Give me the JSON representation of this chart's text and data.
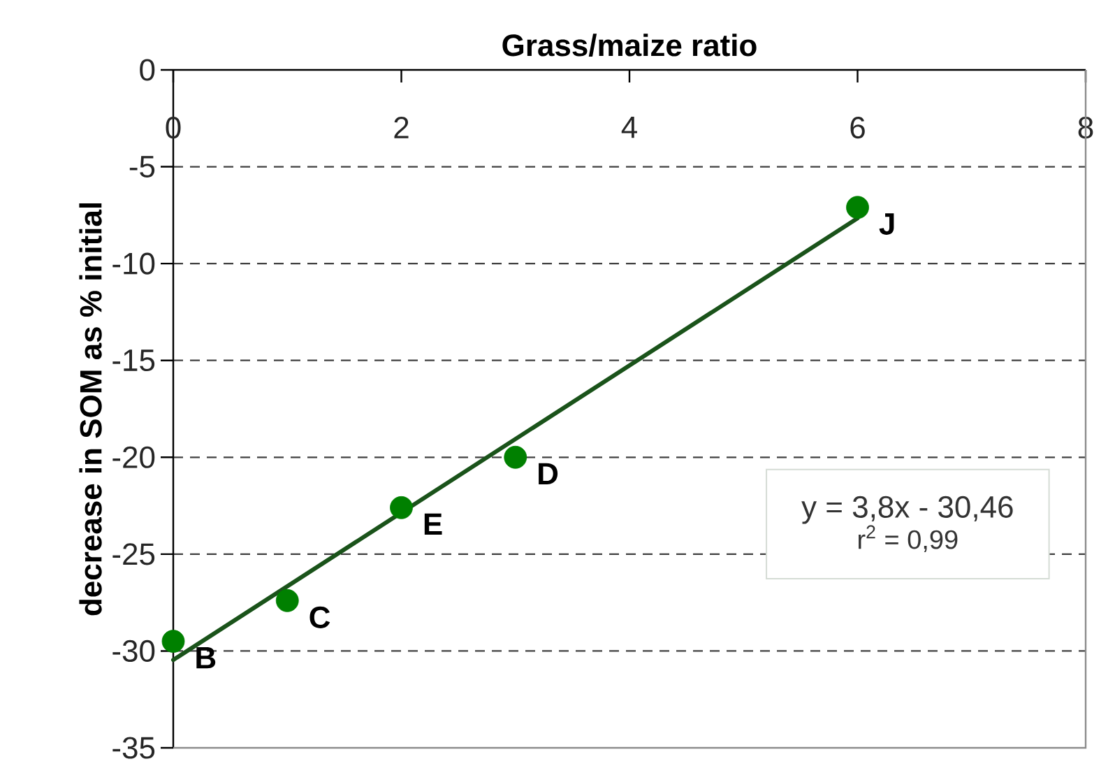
{
  "chart_data": {
    "type": "scatter",
    "xlabel": "Grass/maize ratio",
    "ylabel": "decrease in SOM as % initial",
    "xlim": [
      0,
      8
    ],
    "ylim": [
      -35,
      0
    ],
    "xticks": [
      0,
      2,
      4,
      6,
      8
    ],
    "yticks": [
      -35,
      -30,
      -25,
      -20,
      -15,
      -10,
      -5,
      0
    ],
    "grid": "y",
    "marker": "circle",
    "series": [
      {
        "color": "#008000",
        "x": [
          0,
          1,
          2,
          3,
          6
        ],
        "values": [
          -29.5,
          -27.4,
          -22.6,
          -20,
          -7.1
        ]
      },
      {
        "type": "line",
        "marker": "none",
        "color": "#1a531a",
        "x": [
          0,
          6
        ],
        "values": [
          -30.46,
          -7.66
        ]
      }
    ],
    "annotations": [
      {
        "text": "B",
        "x": 0,
        "y": -29.5
      },
      {
        "text": "C",
        "x": 1,
        "y": -27.4
      },
      {
        "text": "E",
        "x": 2,
        "y": -22.6
      },
      {
        "text": "D",
        "x": 3,
        "y": -20
      },
      {
        "text": "J",
        "x": 6,
        "y": -7.1
      },
      "y = 3,8x - 30,46",
      "r$^{2}$ = 0,99"
    ]
  }
}
